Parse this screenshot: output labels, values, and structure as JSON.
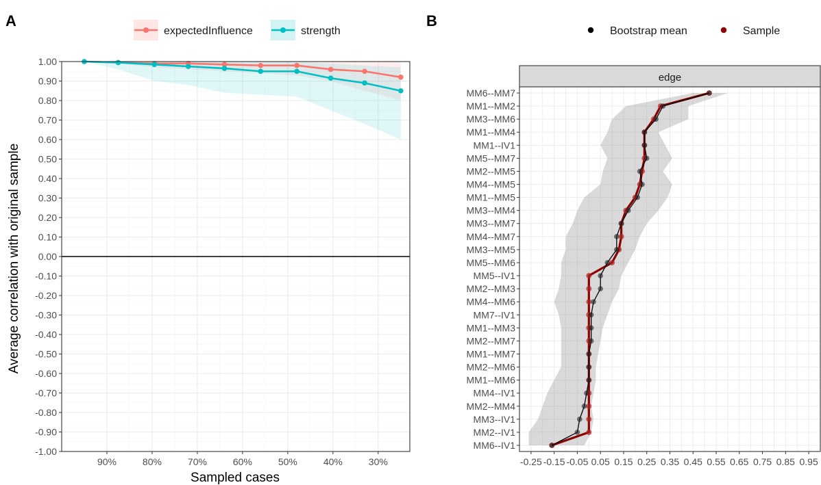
{
  "chart_data": [
    {
      "panel": "A",
      "type": "line",
      "xlabel": "Sampled cases",
      "ylabel": "Average correlation with original sample",
      "ylim": [
        -1.0,
        1.0
      ],
      "y_ticks": [
        "-1.00",
        "-0.90",
        "-0.80",
        "-0.70",
        "-0.60",
        "-0.50",
        "-0.40",
        "-0.30",
        "-0.20",
        "-0.10",
        "0.00",
        "0.10",
        "0.20",
        "0.30",
        "0.40",
        "0.50",
        "0.60",
        "0.70",
        "0.80",
        "0.90",
        "1.00"
      ],
      "x_ticks": [
        "90%",
        "80%",
        "70%",
        "60%",
        "50%",
        "40%",
        "30%"
      ],
      "x_tick_values": [
        90,
        80,
        70,
        60,
        50,
        40,
        30
      ],
      "xlim": [
        100,
        23
      ],
      "grid": true,
      "legend_position": "top",
      "hline": 0,
      "x": [
        95,
        87.5,
        79.5,
        72,
        64,
        56,
        48,
        40.5,
        33,
        25
      ],
      "series": [
        {
          "name": "expectedInfluence",
          "color": "#F8766D",
          "values": [
            1.0,
            0.995,
            0.99,
            0.99,
            0.985,
            0.98,
            0.98,
            0.96,
            0.95,
            0.92
          ],
          "lower": [
            1.0,
            0.99,
            0.97,
            0.96,
            0.95,
            0.94,
            0.93,
            0.9,
            0.85,
            0.8
          ],
          "upper": [
            1.0,
            1.0,
            1.0,
            1.0,
            1.0,
            1.0,
            1.0,
            1.0,
            1.0,
            1.0
          ]
        },
        {
          "name": "strength",
          "color": "#00BFC4",
          "values": [
            1.0,
            0.995,
            0.985,
            0.975,
            0.965,
            0.95,
            0.95,
            0.915,
            0.89,
            0.85
          ],
          "lower": [
            1.0,
            0.96,
            0.9,
            0.88,
            0.84,
            0.83,
            0.82,
            0.75,
            0.68,
            0.6
          ],
          "upper": [
            1.0,
            1.0,
            1.0,
            1.0,
            1.0,
            1.0,
            1.0,
            0.99,
            0.98,
            0.97
          ]
        }
      ]
    },
    {
      "panel": "B",
      "type": "scatter",
      "facet_label": "edge",
      "x_ticks": [
        "-0.25",
        "-0.15",
        "-0.05",
        "0.05",
        "0.15",
        "0.25",
        "0.35",
        "0.45",
        "0.55",
        "0.65",
        "0.75",
        "0.85",
        "0.95"
      ],
      "xlim": [
        -0.3,
        1.0
      ],
      "grid": true,
      "legend_position": "top",
      "categories": [
        "MM6--MM7",
        "MM1--MM2",
        "MM3--MM6",
        "MM1--MM4",
        "MM1--IV1",
        "MM5--MM7",
        "MM2--MM5",
        "MM4--MM5",
        "MM1--MM5",
        "MM3--MM4",
        "MM3--MM7",
        "MM4--MM7",
        "MM3--MM5",
        "MM5--MM6",
        "MM5--IV1",
        "MM2--MM3",
        "MM4--MM6",
        "MM7--IV1",
        "MM1--MM3",
        "MM2--MM7",
        "MM1--MM7",
        "MM2--MM6",
        "MM1--MM6",
        "MM4--IV1",
        "MM2--MM4",
        "MM3--IV1",
        "MM2--IV1",
        "MM6--IV1"
      ],
      "series": [
        {
          "name": "Bootstrap mean",
          "color": "#000000",
          "values": [
            0.52,
            0.32,
            0.29,
            0.24,
            0.24,
            0.25,
            0.22,
            0.23,
            0.21,
            0.17,
            0.14,
            0.12,
            0.12,
            0.08,
            0.05,
            0.05,
            0.02,
            0.01,
            0.01,
            0.01,
            0.0,
            0.0,
            0.0,
            -0.01,
            -0.02,
            -0.04,
            -0.05,
            -0.16
          ]
        },
        {
          "name": "Sample",
          "color": "#8B0000",
          "values": [
            0.52,
            0.31,
            0.28,
            0.24,
            0.24,
            0.24,
            0.23,
            0.22,
            0.2,
            0.16,
            0.14,
            0.14,
            0.13,
            0.1,
            0.0,
            0.0,
            0.0,
            0.0,
            0.0,
            0.0,
            0.0,
            0.0,
            0.0,
            0.0,
            0.0,
            0.0,
            0.0,
            -0.16
          ]
        }
      ],
      "ci_lower": [
        0.45,
        0.16,
        0.1,
        0.08,
        0.05,
        0.08,
        0.06,
        0.05,
        -0.02,
        -0.05,
        -0.07,
        -0.1,
        -0.1,
        -0.12,
        -0.12,
        -0.13,
        -0.15,
        -0.13,
        -0.12,
        -0.12,
        -0.12,
        -0.12,
        -0.15,
        -0.18,
        -0.2,
        -0.22,
        -0.26,
        -0.26
      ],
      "ci_upper": [
        0.6,
        0.43,
        0.43,
        0.3,
        0.33,
        0.36,
        0.32,
        0.36,
        0.34,
        0.3,
        0.25,
        0.22,
        0.2,
        0.17,
        0.14,
        0.13,
        0.1,
        0.08,
        0.06,
        0.05,
        0.04,
        0.03,
        0.03,
        0.02,
        0.01,
        0.02,
        0.01,
        -0.02
      ]
    }
  ],
  "panel_labels": {
    "a": "A",
    "b": "B"
  },
  "colors": {
    "band": "#d4d4d4",
    "grid": "#ebebeb",
    "strip": "#d9d9d9"
  }
}
